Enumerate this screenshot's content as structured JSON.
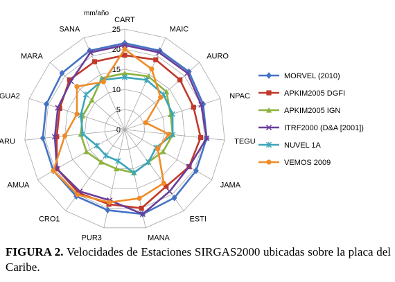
{
  "chart_data": {
    "type": "radar",
    "unit_label": "mm/año",
    "categories": [
      "CART",
      "MAIC",
      "AURO",
      "NPAC",
      "TEGU",
      "JAMA",
      "ESTI",
      "MANA",
      "PUR3",
      "CRO1",
      "AMUA",
      "CARU",
      "GUA2",
      "MARA",
      "SANA"
    ],
    "rlim": [
      0,
      25
    ],
    "ticks": [
      0,
      5,
      10,
      15,
      20,
      25
    ],
    "series": [
      {
        "name": "MORVEL (2010)",
        "color": "#4472C4",
        "marker": "diamond",
        "values": [
          21.5,
          21.5,
          21.5,
          20.5,
          20.5,
          20.5,
          21,
          21.5,
          20.5,
          20.5,
          20.5,
          20.5,
          20.5,
          21,
          21.5
        ]
      },
      {
        "name": "APKIM2005 DGFI",
        "color": "#C0392B",
        "marker": "square",
        "values": [
          18.5,
          19,
          18.5,
          18,
          19,
          18.5,
          17.5,
          20,
          19,
          19.5,
          19.5,
          17,
          17,
          18.5,
          18.5
        ]
      },
      {
        "name": "APKIM2005 IGN",
        "color": "#8DB33F",
        "marker": "triangle",
        "values": [
          14,
          14.5,
          14,
          12,
          12,
          11,
          10,
          11,
          10,
          10,
          11,
          11,
          11,
          11,
          14
        ]
      },
      {
        "name": "ITRF2000 (D&A [2001])",
        "color": "#6A3D9A",
        "marker": "x",
        "values": [
          21,
          21,
          21,
          20,
          20.5,
          18.5,
          19,
          21.5,
          18,
          19,
          19.5,
          17.5,
          17.5,
          18,
          21
        ]
      },
      {
        "name": "NUVEL 1A",
        "color": "#3AA6B9",
        "marker": "asterisk",
        "values": [
          13,
          13.5,
          13,
          12.5,
          12,
          9,
          10,
          11,
          8,
          8,
          8,
          10.5,
          11.5,
          13,
          13.5
        ]
      },
      {
        "name": "VEMOS 2009",
        "color": "#F08C28",
        "marker": "circle",
        "values": [
          20,
          16.5,
          12,
          5.5,
          11,
          9.5,
          16.5,
          17.5,
          18.5,
          20,
          20.5,
          15,
          12.5,
          16,
          13
        ]
      }
    ]
  },
  "caption": {
    "label": "FIGURA 2.",
    "text": "Velocidades de Estaciones SIRGAS2000 ubicadas sobre la placa del Caribe."
  }
}
